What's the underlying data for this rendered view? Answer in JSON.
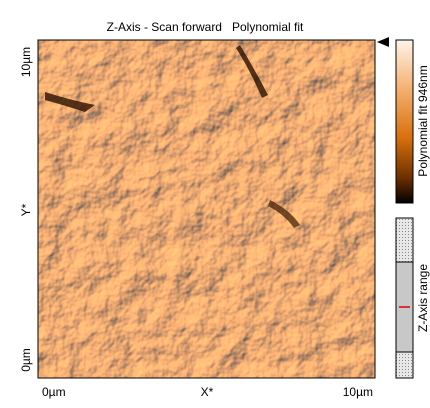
{
  "header": {
    "title": "Z-Axis - Scan forward",
    "fit": "Polynomial fit"
  },
  "axes": {
    "y_top": "10µm",
    "y_label": "Y*",
    "y_bottom": "0µm",
    "x_left": "0µm",
    "x_label": "X*",
    "x_right": "10µm"
  },
  "colorbar": {
    "label": "Polynomial fit 946nm"
  },
  "range": {
    "label": "Z-Axis range"
  }
}
